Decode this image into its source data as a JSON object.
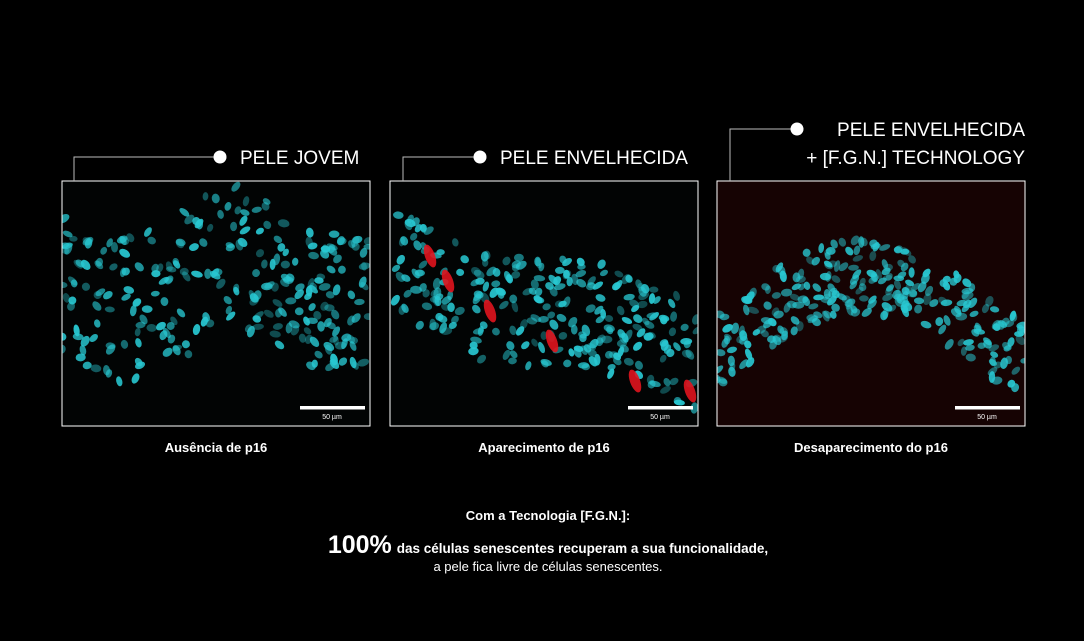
{
  "panels": [
    {
      "title": [
        "PELE JOVEM"
      ],
      "scale": "50 µm",
      "caption": "Ausência de p16"
    },
    {
      "title": [
        "PELE ENVELHECIDA"
      ],
      "scale": "50 µm",
      "caption": "Aparecimento de p16"
    },
    {
      "title": [
        "PELE ENVELHECIDA",
        "+ [F.G.N.] TECHNOLOGY"
      ],
      "scale": "50 µm",
      "caption": "Desaparecimento do p16"
    }
  ],
  "footer": {
    "heading": "Com a Tecnologia [F.G.N.]:",
    "highlight": "100%",
    "line1": "das células senescentes recuperam a sua funcionalidade,",
    "line2": "a pele fica livre de células senescentes."
  }
}
